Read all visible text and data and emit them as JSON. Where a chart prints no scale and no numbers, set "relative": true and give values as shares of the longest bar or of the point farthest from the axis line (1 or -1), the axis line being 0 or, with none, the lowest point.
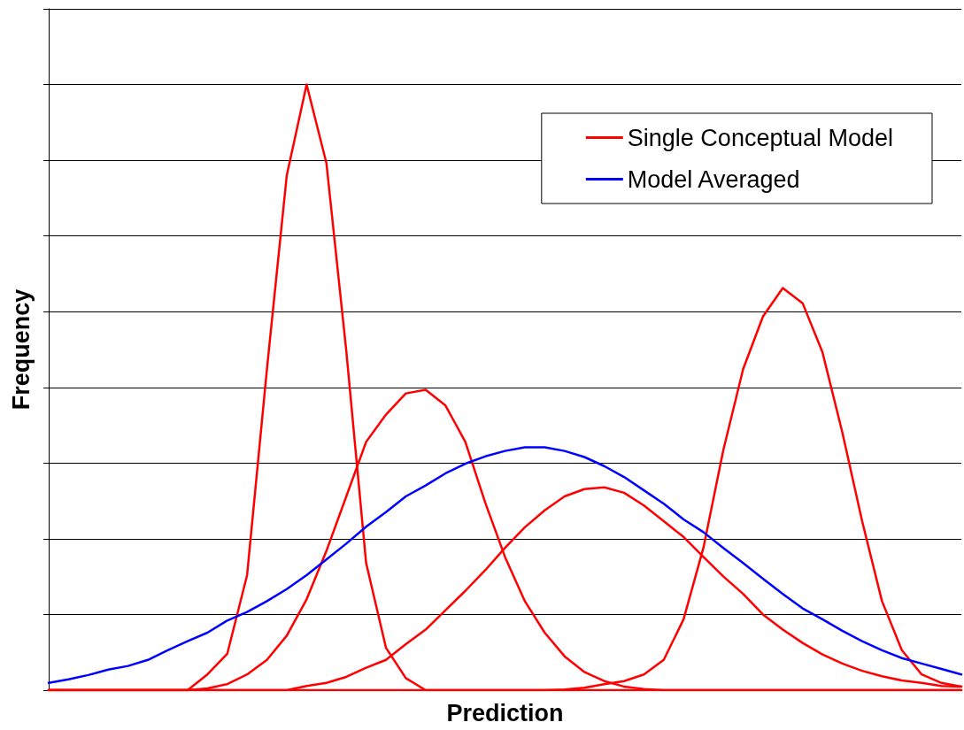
{
  "chart_data": {
    "type": "line",
    "xlabel": "Prediction",
    "ylabel": "Frequency",
    "relative": true,
    "grid": "y",
    "legend": "top right",
    "marker": "none",
    "line_style": "solid",
    "categories": [
      null,
      null,
      null,
      null,
      null,
      null,
      null,
      null,
      null,
      null,
      null,
      null,
      null,
      null,
      null,
      null,
      null,
      null,
      null,
      null,
      null,
      null,
      null,
      null,
      null,
      null,
      null,
      null,
      null,
      null,
      null,
      null,
      null,
      null,
      null,
      null,
      null,
      null,
      null,
      null,
      null,
      null,
      null,
      null,
      null,
      null,
      null
    ],
    "series": [
      {
        "name": "Single Conceptual Model",
        "color": "#ff0000",
        "values": [
          0,
          0,
          0,
          0,
          0,
          0,
          0,
          0,
          0.026,
          0.06,
          0.19,
          0.53,
          0.85,
          1.0,
          0.87,
          0.56,
          0.21,
          0.07,
          0.02,
          0,
          0,
          0,
          0,
          0,
          0,
          0,
          0,
          0,
          0,
          0,
          0,
          0,
          0,
          0,
          0,
          0,
          0,
          0,
          0,
          0,
          0,
          0,
          0,
          0,
          0,
          0,
          0
        ]
      },
      {
        "color": "#ff0000",
        "values": [
          0,
          0,
          0,
          0,
          0,
          0,
          0,
          0,
          0.003,
          0.01,
          0.026,
          0.05,
          0.09,
          0.15,
          0.23,
          0.32,
          0.41,
          0.455,
          0.49,
          0.496,
          0.47,
          0.41,
          0.31,
          0.22,
          0.147,
          0.095,
          0.056,
          0.03,
          0.015,
          0.006,
          0.002,
          0,
          0,
          0,
          0,
          0,
          0,
          0,
          0,
          0,
          0,
          0,
          0,
          0,
          0,
          0,
          0
        ]
      },
      {
        "color": "#ff0000",
        "values": [
          0,
          0,
          0,
          0,
          0,
          0,
          0,
          0,
          0,
          0,
          0,
          0,
          0,
          0.007,
          0.012,
          0.022,
          0.037,
          0.05,
          0.076,
          0.1,
          0.132,
          0.164,
          0.198,
          0.235,
          0.269,
          0.297,
          0.32,
          0.332,
          0.335,
          0.326,
          0.305,
          0.279,
          0.253,
          0.22,
          0.188,
          0.159,
          0.125,
          0.1,
          0.078,
          0.059,
          0.044,
          0.032,
          0.023,
          0.016,
          0.012,
          0.007,
          0.006
        ]
      },
      {
        "color": "#ff0000",
        "values": [
          0,
          0,
          0,
          0,
          0,
          0,
          0,
          0,
          0,
          0,
          0,
          0,
          0,
          0,
          0,
          0,
          0,
          0,
          0,
          0,
          0,
          0,
          0,
          0,
          0,
          0,
          0.001,
          0.004,
          0.01,
          0.015,
          0.026,
          0.05,
          0.117,
          0.235,
          0.396,
          0.53,
          0.617,
          0.664,
          0.639,
          0.558,
          0.426,
          0.279,
          0.147,
          0.066,
          0.026,
          0.012,
          0.006
        ]
      },
      {
        "name": "Model Averaged",
        "color": "#0000ff",
        "values": [
          0.012,
          0.018,
          0.025,
          0.034,
          0.04,
          0.05,
          0.066,
          0.081,
          0.095,
          0.115,
          0.129,
          0.147,
          0.167,
          0.19,
          0.216,
          0.242,
          0.27,
          0.294,
          0.32,
          0.338,
          0.358,
          0.374,
          0.386,
          0.395,
          0.401,
          0.401,
          0.395,
          0.385,
          0.37,
          0.352,
          0.33,
          0.308,
          0.282,
          0.261,
          0.235,
          0.21,
          0.184,
          0.159,
          0.135,
          0.117,
          0.098,
          0.081,
          0.066,
          0.053,
          0.044,
          0.035,
          0.026
        ]
      }
    ]
  }
}
